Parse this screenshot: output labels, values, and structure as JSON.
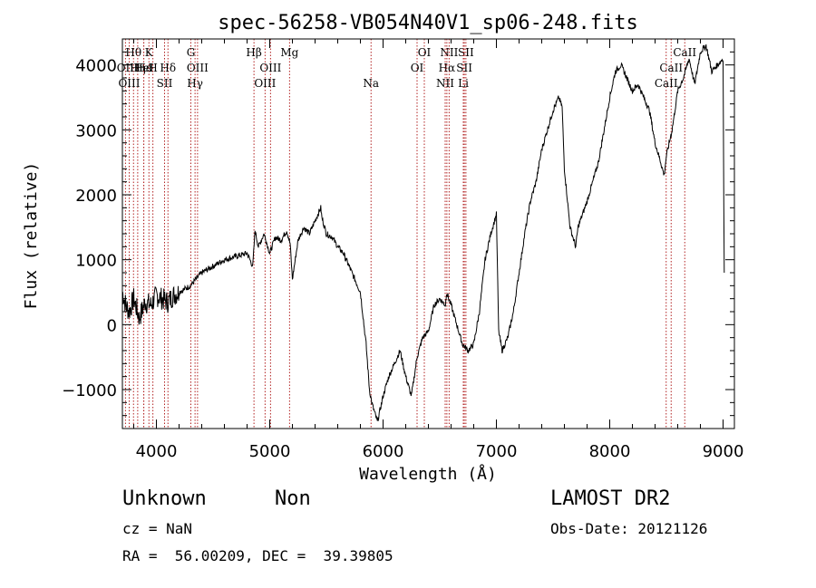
{
  "chart_data": {
    "type": "line",
    "title": "spec-56258-VB054N40V1_sp06-248.fits",
    "xlabel": "Wavelength (Å)",
    "ylabel": "Flux (relative)",
    "xlim": [
      3700,
      9100
    ],
    "ylim": [
      -1600,
      4400
    ],
    "x_ticks": [
      4000,
      5000,
      6000,
      7000,
      8000,
      9000
    ],
    "y_ticks": [
      -1000,
      0,
      1000,
      2000,
      3000,
      4000
    ],
    "x_tick_labels": [
      "4000",
      "5000",
      "6000",
      "7000",
      "8000",
      "9000"
    ],
    "y_tick_labels": [
      "−1000",
      "0",
      "1000",
      "2000",
      "3000",
      "4000"
    ],
    "grid": false,
    "series": [
      {
        "x": [
          3700,
          3730,
          3760,
          3800,
          3850,
          3900,
          3950,
          4000,
          4050,
          4100,
          4150,
          4200,
          4300,
          4400,
          4500,
          4600,
          4700,
          4800,
          4850,
          4870,
          4900,
          4950,
          5000,
          5050,
          5100,
          5150,
          5180,
          5200,
          5250,
          5300,
          5350,
          5400,
          5450,
          5460,
          5500,
          5550,
          5600,
          5650,
          5700,
          5750,
          5800,
          5850,
          5880,
          5900,
          5950,
          6000,
          6050,
          6100,
          6150,
          6200,
          6250,
          6300,
          6350,
          6400,
          6450,
          6500,
          6550,
          6560,
          6600,
          6650,
          6700,
          6750,
          6800,
          6850,
          6900,
          6950,
          7000,
          7020,
          7050,
          7100,
          7150,
          7200,
          7250,
          7300,
          7350,
          7400,
          7450,
          7500,
          7550,
          7580,
          7600,
          7650,
          7700,
          7720,
          7800,
          7850,
          7900,
          7950,
          8000,
          8050,
          8100,
          8150,
          8200,
          8250,
          8300,
          8350,
          8400,
          8450,
          8480,
          8500,
          8550,
          8600,
          8650,
          8700,
          8750,
          8800,
          8850,
          8900,
          8950,
          9000,
          9010
        ],
        "y": [
          500,
          300,
          200,
          400,
          100,
          350,
          300,
          450,
          400,
          350,
          450,
          500,
          600,
          800,
          900,
          1000,
          1050,
          1100,
          900,
          1450,
          1200,
          1400,
          1100,
          1350,
          1300,
          1450,
          1250,
          700,
          1300,
          1500,
          1400,
          1600,
          1800,
          1650,
          1400,
          1350,
          1200,
          1100,
          900,
          700,
          500,
          -300,
          -1000,
          -1200,
          -1500,
          -1100,
          -800,
          -600,
          -400,
          -800,
          -1100,
          -500,
          -200,
          -100,
          300,
          400,
          300,
          500,
          300,
          0,
          -300,
          -400,
          -300,
          200,
          1000,
          1400,
          1700,
          -100,
          -400,
          -200,
          200,
          800,
          1400,
          1900,
          2200,
          2700,
          3000,
          3300,
          3500,
          3350,
          2400,
          1500,
          1200,
          1500,
          1900,
          2200,
          2500,
          3000,
          3500,
          3900,
          4000,
          3800,
          3600,
          3700,
          3500,
          3300,
          2800,
          2500,
          2300,
          2600,
          3000,
          3600,
          3800,
          4100,
          3700,
          4200,
          4300,
          3900,
          4000,
          4100,
          800
        ]
      }
    ],
    "line_markers": [
      {
        "label": "Hθ",
        "wavelength": 3798,
        "row": 1
      },
      {
        "label": "OII",
        "wavelength": 3727,
        "row": 2
      },
      {
        "label": "Hη",
        "wavelength": 3835,
        "row": 2
      },
      {
        "label": "OIII",
        "wavelength": 3760,
        "row": 3
      },
      {
        "label": "Hε",
        "wavelength": 3889,
        "row": 2
      },
      {
        "label": "HeI",
        "wavelength": 3888,
        "row": 2
      },
      {
        "label": "K",
        "wavelength": 3934,
        "row": 1
      },
      {
        "label": "H",
        "wavelength": 3969,
        "row": 2
      },
      {
        "label": "Hδ",
        "wavelength": 4102,
        "row": 2
      },
      {
        "label": "SII",
        "wavelength": 4072,
        "row": 3
      },
      {
        "label": "G",
        "wavelength": 4304,
        "row": 1
      },
      {
        "label": "OIII",
        "wavelength": 4363,
        "row": 2
      },
      {
        "label": "Hγ",
        "wavelength": 4341,
        "row": 3
      },
      {
        "label": "Hβ",
        "wavelength": 4861,
        "row": 1
      },
      {
        "label": "OIII",
        "wavelength": 5007,
        "row": 2
      },
      {
        "label": "OIII",
        "wavelength": 4959,
        "row": 3
      },
      {
        "label": "Mg",
        "wavelength": 5175,
        "row": 1
      },
      {
        "label": "Na",
        "wavelength": 5894,
        "row": 3
      },
      {
        "label": "OI",
        "wavelength": 6364,
        "row": 1
      },
      {
        "label": "OI",
        "wavelength": 6300,
        "row": 2
      },
      {
        "label": "NII",
        "wavelength": 6583,
        "row": 1
      },
      {
        "label": "Hα",
        "wavelength": 6563,
        "row": 2
      },
      {
        "label": "NII",
        "wavelength": 6548,
        "row": 3
      },
      {
        "label": "SII",
        "wavelength": 6731,
        "row": 1
      },
      {
        "label": "SII",
        "wavelength": 6717,
        "row": 2
      },
      {
        "label": "Li",
        "wavelength": 6708,
        "row": 3
      },
      {
        "label": "CaII",
        "wavelength": 8662,
        "row": 1
      },
      {
        "label": "CaII",
        "wavelength": 8542,
        "row": 2
      },
      {
        "label": "CaII",
        "wavelength": 8498,
        "row": 3
      }
    ],
    "marker_color": "#b22222"
  },
  "info": {
    "object_class": "Unknown",
    "subclass": "Non",
    "survey": "LAMOST DR2",
    "cz": "cz = NaN",
    "obs_date": "Obs-Date: 20121126",
    "coords": "RA =  56.00209, DEC =  39.39805"
  }
}
